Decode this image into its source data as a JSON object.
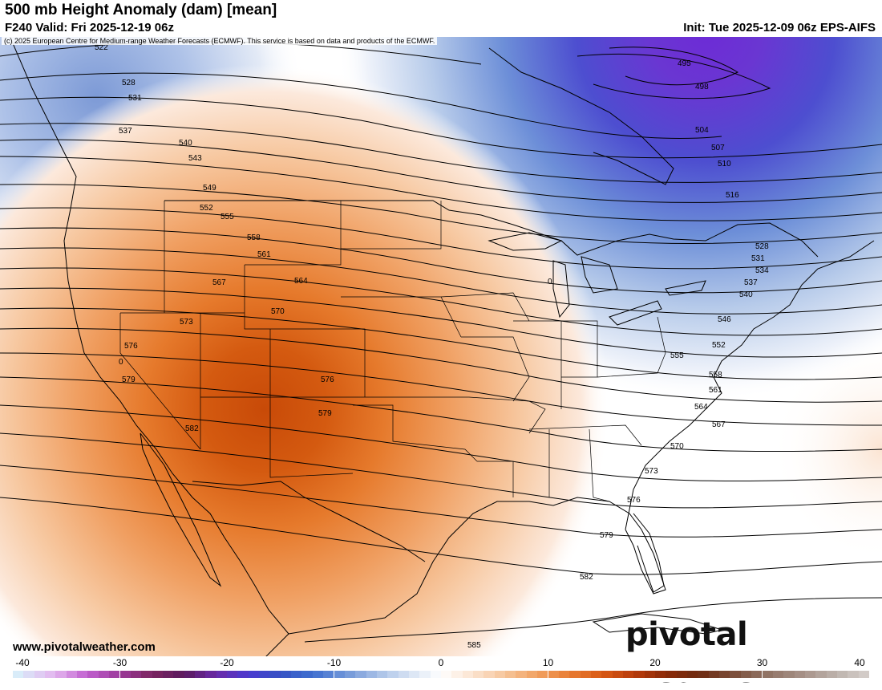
{
  "header": {
    "title": "500 mb Height Anomaly (dam) [mean]",
    "valid": "F240 Valid: Fri 2025-12-19 06z",
    "init": "Init: Tue 2025-12-09 06z EPS-AIFS"
  },
  "copyright": "(c) 2025 European Centre for Medium-range Weather Forecasts (ECMWF). This service is based on data and products of the ECMWF.",
  "footer": {
    "website": "www.pivotalweather.com",
    "brand": "pivotal weather"
  },
  "colorbar": {
    "min": -40,
    "max": 40,
    "step": 1,
    "tick_labels": [
      "-40",
      "-30",
      "-20",
      "-10",
      "0",
      "10",
      "20",
      "30",
      "40"
    ],
    "tick_values": [
      -40,
      -30,
      -20,
      -10,
      0,
      10,
      20,
      30,
      40
    ],
    "color_stops": [
      {
        "v": -40,
        "c": "#d8f4fb"
      },
      {
        "v": -36,
        "c": "#e3b4ee"
      },
      {
        "v": -33,
        "c": "#c05fcf"
      },
      {
        "v": -30,
        "c": "#9c3a9b"
      },
      {
        "v": -27,
        "c": "#7b2560"
      },
      {
        "v": -24,
        "c": "#5a1a5f"
      },
      {
        "v": -21,
        "c": "#6a2aa8"
      },
      {
        "v": -18,
        "c": "#4b3ad0"
      },
      {
        "v": -15,
        "c": "#3552c4"
      },
      {
        "v": -12,
        "c": "#3f6fcf"
      },
      {
        "v": -9,
        "c": "#6f95d8"
      },
      {
        "v": -6,
        "c": "#a6bfe6"
      },
      {
        "v": -3,
        "c": "#d6e2f3"
      },
      {
        "v": 0,
        "c": "#ffffff"
      },
      {
        "v": 3,
        "c": "#fbe3cf"
      },
      {
        "v": 6,
        "c": "#f6c59a"
      },
      {
        "v": 9,
        "c": "#f1a160"
      },
      {
        "v": 12,
        "c": "#e97d33"
      },
      {
        "v": 15,
        "c": "#d95a14"
      },
      {
        "v": 18,
        "c": "#b83c0c"
      },
      {
        "v": 21,
        "c": "#8c2a08"
      },
      {
        "v": 24,
        "c": "#6e2a10"
      },
      {
        "v": 27,
        "c": "#7a4a35"
      },
      {
        "v": 30,
        "c": "#8e6f60"
      },
      {
        "v": 34,
        "c": "#a8948a"
      },
      {
        "v": 37,
        "c": "#bdb3ad"
      },
      {
        "v": 40,
        "c": "#d6d0cc"
      }
    ]
  },
  "map": {
    "colors": {
      "ocean_base": "#ffffff",
      "land_border": "#000000",
      "contour": "#000000"
    },
    "contour_labels": [
      "522",
      "528",
      "531",
      "537",
      "540",
      "543",
      "549",
      "552",
      "555",
      "558",
      "561",
      "564",
      "567",
      "570",
      "573",
      "576",
      "579",
      "582",
      "585",
      "495",
      "498",
      "504",
      "507",
      "510",
      "516",
      "528",
      "531",
      "534",
      "537",
      "540",
      "546",
      "552",
      "555",
      "558",
      "561",
      "564",
      "567",
      "570",
      "573",
      "576",
      "579",
      "582",
      "0",
      "0"
    ]
  }
}
